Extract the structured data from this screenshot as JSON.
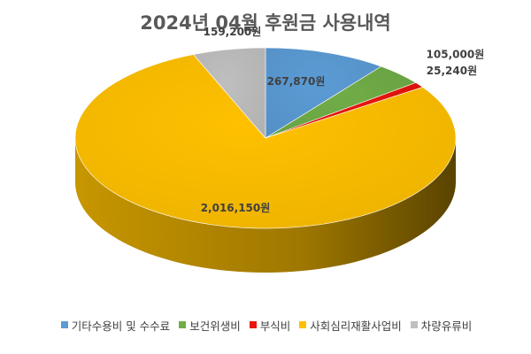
{
  "chart_data": {
    "type": "pie",
    "title": "2024년 04월 후원금 사용내역",
    "series": [
      {
        "name": "기타수용비 및 수수료",
        "value": 267870,
        "label": "267,870원",
        "color": "#5B9BD5"
      },
      {
        "name": "보건위생비",
        "value": 105000,
        "label": "105,000원",
        "color": "#70AD47"
      },
      {
        "name": "부식비",
        "value": 25240,
        "label": "25,240원",
        "color": "#E8160C"
      },
      {
        "name": "사회심리재활사업비",
        "value": 2016150,
        "label": "2,016,150원",
        "color": "#FFC000"
      },
      {
        "name": "차량유류비",
        "value": 159200,
        "label": "159,200원",
        "color": "#BFBFBF"
      }
    ],
    "legend_position": "bottom",
    "style": "3d"
  }
}
